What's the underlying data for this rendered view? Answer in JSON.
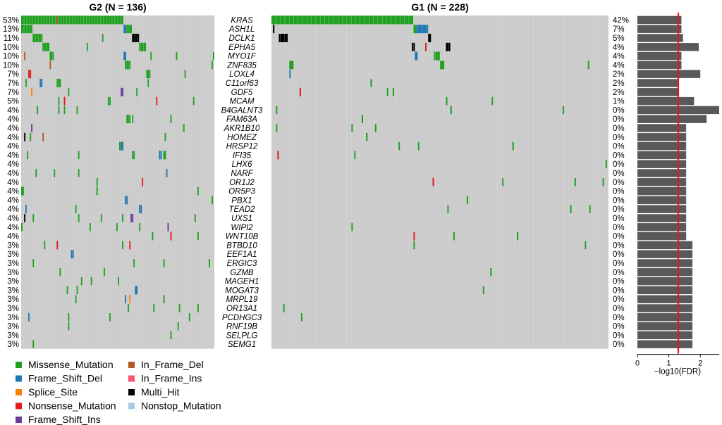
{
  "chart_data": {
    "type": "heatmap",
    "panels": [
      {
        "title": "G2 (N = 136)",
        "percents": [
          "53%",
          "13%",
          "11%",
          "10%",
          "10%",
          "10%",
          "7%",
          "7%",
          "7%",
          "5%",
          "4%",
          "4%",
          "4%",
          "4%",
          "4%",
          "4%",
          "4%",
          "4%",
          "4%",
          "4%",
          "4%",
          "4%",
          "4%",
          "4%",
          "4%",
          "3%",
          "3%",
          "3%",
          "3%",
          "3%",
          "3%",
          "3%",
          "3%",
          "3%",
          "3%",
          "3%",
          "3%"
        ],
        "events": [
          {
            "gene": "KRAS",
            "start": 0,
            "len": 25,
            "type": "Missense_Mutation"
          },
          {
            "gene": "KRAS",
            "start": 25,
            "len": 1,
            "type": "In_Frame_Del"
          },
          {
            "gene": "KRAS",
            "start": 26,
            "len": 46,
            "type": "Missense_Mutation"
          },
          {
            "gene": "ASH1L",
            "start": 0,
            "len": 8,
            "type": "Missense_Mutation"
          },
          {
            "gene": "ASH1L",
            "start": 72,
            "len": 2,
            "type": "Frame_Shift_Del"
          },
          {
            "gene": "ASH1L",
            "start": 74,
            "len": 4,
            "type": "Missense_Mutation"
          },
          {
            "gene": "DCLK1",
            "start": 8,
            "len": 7,
            "type": "Missense_Mutation"
          },
          {
            "gene": "DCLK1",
            "start": 78,
            "len": 5,
            "type": "Multi_Hit"
          },
          {
            "gene": "EPHA5",
            "start": 15,
            "len": 5,
            "type": "Missense_Mutation"
          },
          {
            "gene": "EPHA5",
            "start": 83,
            "len": 5,
            "type": "Missense_Mutation"
          },
          {
            "gene": "MYO1F",
            "start": 20,
            "len": 3,
            "type": "Missense_Mutation"
          },
          {
            "gene": "MYO1F",
            "start": 72,
            "len": 2,
            "type": "Frame_Shift_Del"
          },
          {
            "gene": "MYO1F",
            "start": 2,
            "len": 1,
            "type": "In_Frame_Del"
          },
          {
            "gene": "ZNF835",
            "start": 73,
            "len": 4,
            "type": "Missense_Mutation"
          },
          {
            "gene": "ZNF835",
            "start": 20,
            "len": 1,
            "type": "In_Frame_Del"
          },
          {
            "gene": "LOXL4",
            "start": 5,
            "len": 2,
            "type": "Nonsense_Mutation"
          },
          {
            "gene": "LOXL4",
            "start": 88,
            "len": 3,
            "type": "Missense_Mutation"
          },
          {
            "gene": "C11orf63",
            "start": 13,
            "len": 2,
            "type": "Frame_Shift_Del"
          },
          {
            "gene": "C11orf63",
            "start": 25,
            "len": 3,
            "type": "Missense_Mutation"
          },
          {
            "gene": "GDF5",
            "start": 7,
            "len": 1,
            "type": "Splice_Site"
          },
          {
            "gene": "GDF5",
            "start": 70,
            "len": 2,
            "type": "Frame_Shift_Ins"
          },
          {
            "gene": "MCAM",
            "start": 30,
            "len": 1,
            "type": "Nonsense_Mutation"
          },
          {
            "gene": "MCAM",
            "start": 95,
            "len": 1,
            "type": "Nonsense_Mutation"
          },
          {
            "gene": "FAM63A",
            "start": 74,
            "len": 3,
            "type": "Missense_Mutation"
          },
          {
            "gene": "AKR1B10",
            "start": 7,
            "len": 1,
            "type": "Frame_Shift_Ins"
          },
          {
            "gene": "HOMEZ",
            "start": 2,
            "len": 1,
            "type": "Multi_Hit"
          },
          {
            "gene": "HOMEZ",
            "start": 15,
            "len": 1,
            "type": "In_Frame_Del"
          },
          {
            "gene": "HRSP12",
            "start": 70,
            "len": 2,
            "type": "Frame_Shift_Del"
          },
          {
            "gene": "IFI35",
            "start": 97,
            "len": 2,
            "type": "Frame_Shift_Del"
          },
          {
            "gene": "IFI35",
            "start": 100,
            "len": 2,
            "type": "Missense_Mutation"
          },
          {
            "gene": "NARF",
            "start": 102,
            "len": 1,
            "type": "Frame_Shift_Del"
          },
          {
            "gene": "OR1J2",
            "start": 85,
            "len": 1,
            "type": "Nonsense_Mutation"
          },
          {
            "gene": "OR5P3",
            "start": 0,
            "len": 2,
            "type": "Missense_Mutation"
          },
          {
            "gene": "PBX1",
            "start": 73,
            "len": 2,
            "type": "Frame_Shift_Del"
          },
          {
            "gene": "TEAD2",
            "start": 3,
            "len": 1,
            "type": "Frame_Shift_Del"
          },
          {
            "gene": "TEAD2",
            "start": 83,
            "len": 2,
            "type": "Frame_Shift_Del"
          },
          {
            "gene": "UXS1",
            "start": 2,
            "len": 1,
            "type": "Multi_Hit"
          },
          {
            "gene": "UXS1",
            "start": 77,
            "len": 2,
            "type": "Frame_Shift_Ins"
          },
          {
            "gene": "WIPI2",
            "start": 103,
            "len": 1,
            "type": "Frame_Shift_Ins"
          },
          {
            "gene": "WNT10B",
            "start": 105,
            "len": 1,
            "type": "Nonsense_Mutation"
          },
          {
            "gene": "BTBD10",
            "start": 25,
            "len": 1,
            "type": "Nonsense_Mutation"
          },
          {
            "gene": "BTBD10",
            "start": 76,
            "len": 1,
            "type": "Nonsense_Mutation"
          },
          {
            "gene": "EEF1A1",
            "start": 35,
            "len": 2,
            "type": "Frame_Shift_Del"
          },
          {
            "gene": "MOGAT3",
            "start": 80,
            "len": 2,
            "type": "Frame_Shift_Del"
          },
          {
            "gene": "MRPL19",
            "start": 73,
            "len": 1,
            "type": "Frame_Shift_Del"
          },
          {
            "gene": "MRPL19",
            "start": 76,
            "len": 1,
            "type": "Splice_Site"
          },
          {
            "gene": "PCDHGC3",
            "start": 5,
            "len": 1,
            "type": "Frame_Shift_Del"
          }
        ],
        "sparse_hits": 75
      },
      {
        "title": "G1 (N = 228)",
        "events": [
          {
            "gene": "KRAS",
            "start": 0,
            "len": 96,
            "type": "Missense_Mutation"
          },
          {
            "gene": "ASH1L",
            "start": 1,
            "len": 1,
            "type": "Multi_Hit"
          },
          {
            "gene": "ASH1L",
            "start": 96,
            "len": 2,
            "type": "Missense_Mutation"
          },
          {
            "gene": "ASH1L",
            "start": 98,
            "len": 8,
            "type": "Frame_Shift_Del"
          },
          {
            "gene": "DCLK1",
            "start": 5,
            "len": 6,
            "type": "Multi_Hit"
          },
          {
            "gene": "DCLK1",
            "start": 106,
            "len": 2,
            "type": "Multi_Hit"
          },
          {
            "gene": "EPHA5",
            "start": 95,
            "len": 2,
            "type": "Multi_Hit"
          },
          {
            "gene": "EPHA5",
            "start": 104,
            "len": 1,
            "type": "Nonsense_Mutation"
          },
          {
            "gene": "EPHA5",
            "start": 118,
            "len": 3,
            "type": "Multi_Hit"
          },
          {
            "gene": "MYO1F",
            "start": 97,
            "len": 2,
            "type": "Frame_Shift_Del"
          },
          {
            "gene": "MYO1F",
            "start": 110,
            "len": 4,
            "type": "Missense_Mutation"
          },
          {
            "gene": "ZNF835",
            "start": 12,
            "len": 3,
            "type": "Missense_Mutation"
          },
          {
            "gene": "ZNF835",
            "start": 114,
            "len": 3,
            "type": "Missense_Mutation"
          },
          {
            "gene": "LOXL4",
            "start": 12,
            "len": 1,
            "type": "Frame_Shift_Del"
          },
          {
            "gene": "GDF5",
            "start": 19,
            "len": 1,
            "type": "Nonsense_Mutation"
          },
          {
            "gene": "IFI35",
            "start": 4,
            "len": 1,
            "type": "Nonsense_Mutation"
          },
          {
            "gene": "OR1J2",
            "start": 109,
            "len": 1,
            "type": "Nonsense_Mutation"
          },
          {
            "gene": "WNT10B",
            "start": 96,
            "len": 1,
            "type": "Nonsense_Mutation"
          }
        ],
        "sparse_hits": 35
      }
    ],
    "genes": [
      "KRAS",
      "ASH1L",
      "DCLK1",
      "EPHA5",
      "MYO1F",
      "ZNF835",
      "LOXL4",
      "C11orf63",
      "GDF5",
      "MCAM",
      "B4GALNT3",
      "FAM63A",
      "AKR1B10",
      "HOMEZ",
      "HRSP12",
      "IFI35",
      "LHX6",
      "NARF",
      "OR1J2",
      "OR5P3",
      "PBX1",
      "TEAD2",
      "UXS1",
      "WIPI2",
      "WNT10B",
      "BTBD10",
      "EEF1A1",
      "ERGIC3",
      "GZMB",
      "MAGEH1",
      "MOGAT3",
      "MRPL19",
      "OR13A1",
      "PCDHGC3",
      "RNF19B",
      "SELPLG",
      "SEMG1"
    ],
    "right_percents": [
      "42%",
      "7%",
      "5%",
      "4%",
      "4%",
      "4%",
      "2%",
      "2%",
      "2%",
      "1%",
      "0%",
      "0%",
      "0%",
      "0%",
      "0%",
      "0%",
      "0%",
      "0%",
      "0%",
      "0%",
      "0%",
      "0%",
      "0%",
      "0%",
      "0%",
      "0%",
      "0%",
      "0%",
      "0%",
      "0%",
      "0%",
      "0%",
      "0%",
      "0%",
      "0%",
      "0%",
      "0%"
    ],
    "fdr_bar": {
      "xlabel": "−log10(FDR)",
      "xlim": [
        0,
        2.6
      ],
      "ticks": [
        "0",
        "1",
        "2"
      ],
      "threshold": 1.3,
      "values": [
        1.4,
        1.4,
        1.45,
        1.95,
        1.4,
        1.4,
        2.0,
        1.3,
        1.3,
        1.8,
        2.6,
        2.2,
        1.55,
        1.55,
        1.55,
        1.55,
        1.55,
        1.55,
        1.55,
        1.55,
        1.55,
        1.55,
        1.55,
        1.55,
        1.55,
        1.75,
        1.75,
        1.75,
        1.75,
        1.75,
        1.75,
        1.75,
        1.75,
        1.75,
        1.75,
        1.75,
        1.75
      ]
    },
    "legend": [
      {
        "label": "Missense_Mutation",
        "color": "#21a121"
      },
      {
        "label": "Frame_Shift_Del",
        "color": "#1f78b4"
      },
      {
        "label": "Splice_Site",
        "color": "#ff7f00"
      },
      {
        "label": "Nonsense_Mutation",
        "color": "#e31a1c"
      },
      {
        "label": "Frame_Shift_Ins",
        "color": "#6a3d9a"
      },
      {
        "label": "In_Frame_Del",
        "color": "#b15928"
      },
      {
        "label": "In_Frame_Ins",
        "color": "#fb5673"
      },
      {
        "label": "Multi_Hit",
        "color": "#000000"
      },
      {
        "label": "Nonstop_Mutation",
        "color": "#a6cee3"
      }
    ],
    "colors": {
      "background": "#cccccc",
      "bar": "#595959",
      "threshold_line": "#e8151b"
    }
  }
}
